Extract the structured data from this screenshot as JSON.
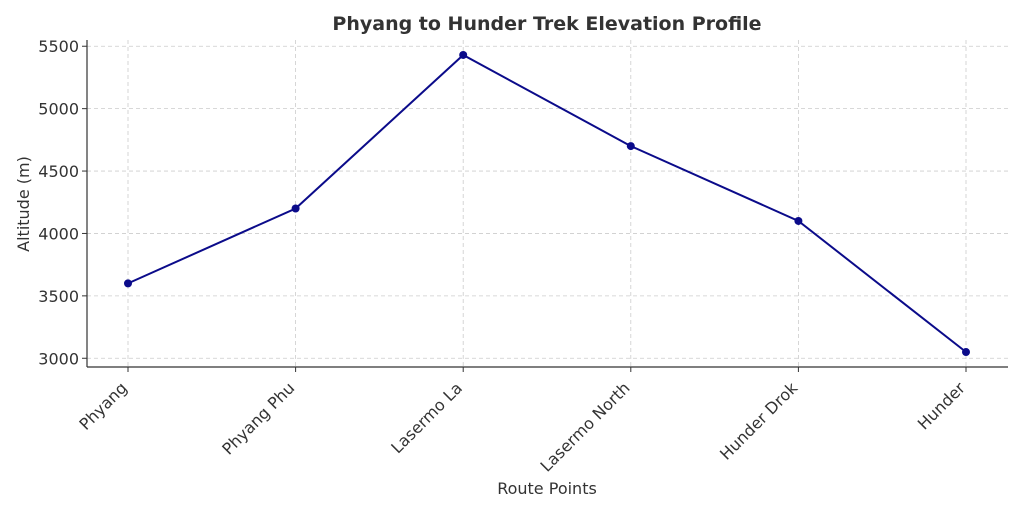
{
  "chart_data": {
    "type": "line",
    "title": "Phyang to Hunder Trek Elevation Profile",
    "xlabel": "Route Points",
    "ylabel": "Altitude (m)",
    "categories": [
      "Phyang",
      "Phyang Phu",
      "Lasermo La",
      "Lasermo North",
      "Hunder Drok",
      "Hunder"
    ],
    "series": [
      {
        "values": [
          3600,
          4200,
          5430,
          4700,
          4100,
          3050
        ]
      }
    ],
    "ylim": [
      2930,
      5550
    ],
    "yticks": [
      3000,
      3500,
      4000,
      4500,
      5000,
      5500
    ],
    "grid": true,
    "colors": {
      "line": "#0b0b8a",
      "marker": "#0b0b8a"
    }
  }
}
